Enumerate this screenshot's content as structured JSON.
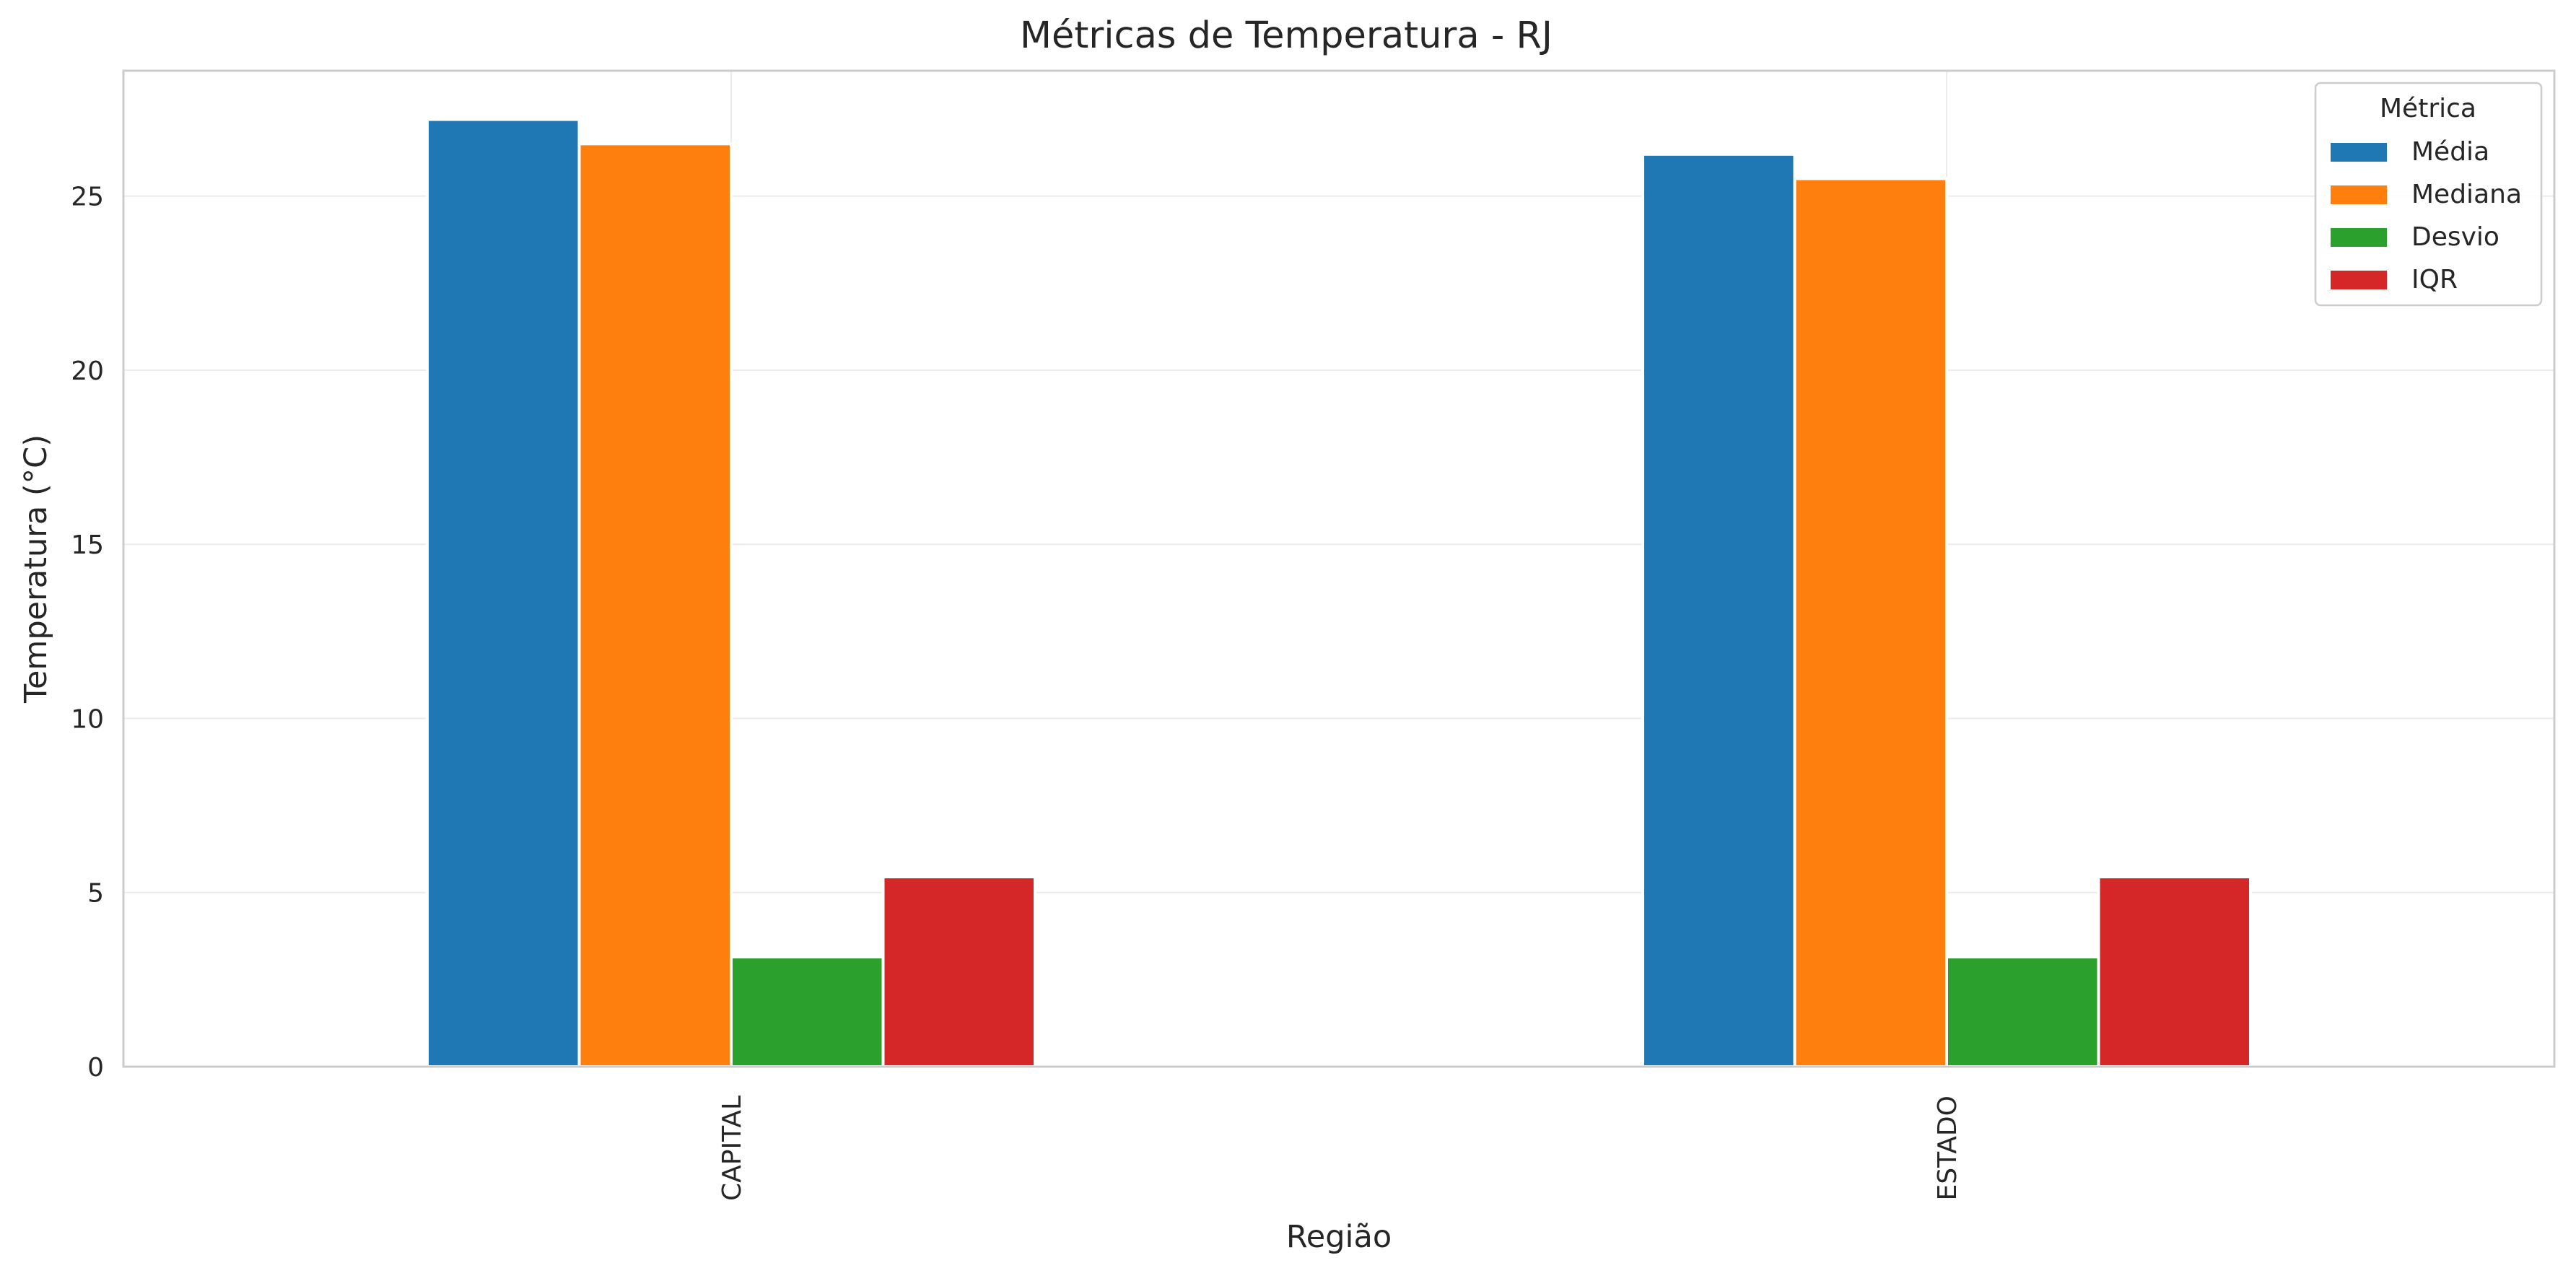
{
  "chart_data": {
    "type": "bar",
    "title": "Métricas de Temperatura - RJ",
    "xlabel": "Região",
    "ylabel": "Temperatura (°C)",
    "categories": [
      "CAPITAL",
      "ESTADO"
    ],
    "series": [
      {
        "name": "Média",
        "values": [
          27.2,
          26.2
        ],
        "color": "#1f77b4"
      },
      {
        "name": "Mediana",
        "values": [
          26.5,
          25.5
        ],
        "color": "#ff7f0e"
      },
      {
        "name": "Desvio",
        "values": [
          3.15,
          3.15
        ],
        "color": "#2ca02c"
      },
      {
        "name": "IQR",
        "values": [
          5.45,
          5.45
        ],
        "color": "#d62728"
      }
    ],
    "ylim": [
      0,
      28.6
    ],
    "yticks": [
      0,
      5,
      10,
      15,
      20,
      25
    ],
    "grid": true,
    "legend": {
      "title": "Métrica",
      "placement": "top-right"
    }
  }
}
